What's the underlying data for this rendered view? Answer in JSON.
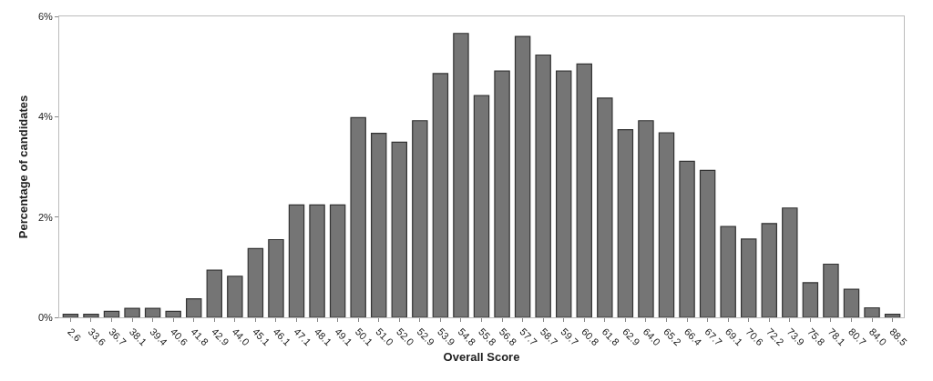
{
  "chart_data": {
    "type": "bar",
    "xlabel": "Overall Score",
    "ylabel": "Percentage of candidates",
    "categories": [
      "2.6",
      "33.6",
      "36.7",
      "38.1",
      "39.4",
      "40.6",
      "41.8",
      "42.9",
      "44.0",
      "45.1",
      "46.1",
      "47.1",
      "48.1",
      "49.1",
      "50.1",
      "51.0",
      "52.0",
      "52.9",
      "53.9",
      "54.8",
      "55.8",
      "56.8",
      "57.7",
      "58.7",
      "59.7",
      "60.8",
      "61.8",
      "62.9",
      "64.0",
      "65.2",
      "66.4",
      "67.7",
      "69.1",
      "70.6",
      "72.2",
      "73.9",
      "75.8",
      "78.1",
      "80.7",
      "84.0",
      "88.5"
    ],
    "values": [
      0.06,
      0.06,
      0.12,
      0.18,
      0.18,
      0.12,
      0.37,
      0.94,
      0.82,
      1.37,
      1.55,
      2.24,
      2.24,
      2.24,
      3.98,
      3.67,
      3.49,
      3.92,
      4.86,
      5.66,
      4.42,
      4.91,
      5.6,
      5.23,
      4.91,
      5.05,
      4.37,
      3.74,
      3.92,
      3.68,
      3.11,
      2.93,
      1.81,
      1.56,
      1.87,
      2.18,
      0.69,
      1.06,
      0.56,
      0.19,
      0.06
    ],
    "color": "#757575",
    "ylim": [
      0,
      6
    ],
    "yticks": [
      {
        "value": 0,
        "label": "0%"
      },
      {
        "value": 2,
        "label": "2%"
      },
      {
        "value": 4,
        "label": "4%"
      },
      {
        "value": 6,
        "label": "6%"
      }
    ],
    "grid": false
  }
}
